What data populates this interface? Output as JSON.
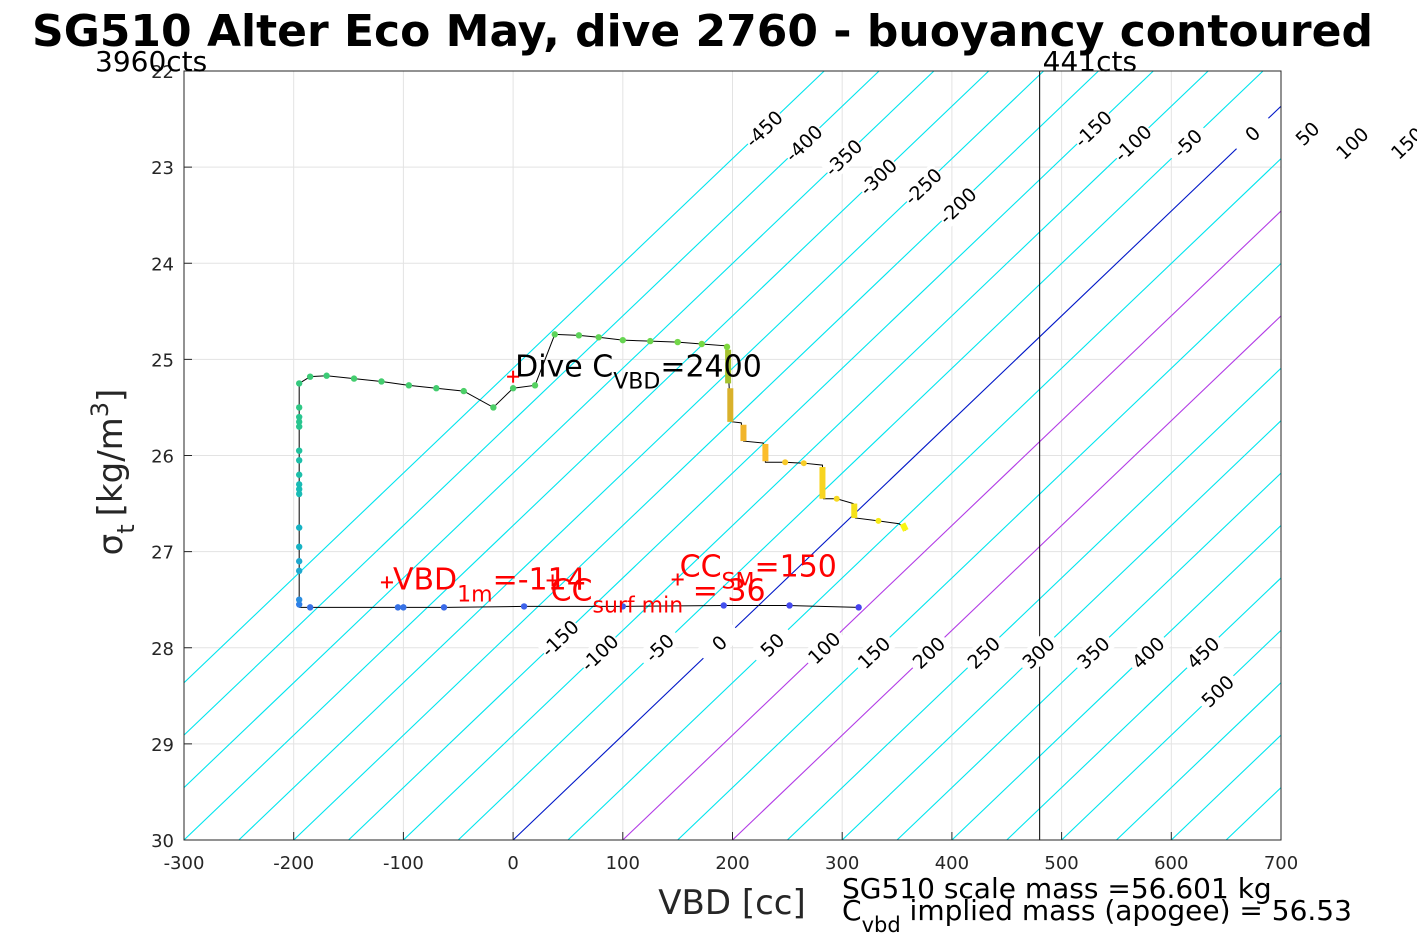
{
  "title": "SG510 Alter Eco May, dive 2760 - buoyancy contoured",
  "chart_data": {
    "type": "scatter",
    "xlabel": "VBD [cc]",
    "ylabel": {
      "sigma": "σ",
      "sub": "t",
      "unit_pre": "[kg/m",
      "sup": "3",
      "unit_post": "]"
    },
    "xlim": [
      -300,
      700
    ],
    "ylim": [
      22,
      30
    ],
    "y_reversed": true,
    "grid": true,
    "x_ticks": [
      "-300",
      "-200",
      "-100",
      "0",
      "100",
      "200",
      "300",
      "400",
      "500",
      "600",
      "700"
    ],
    "y_ticks": [
      "22",
      "23",
      "24",
      "25",
      "26",
      "27",
      "28",
      "29",
      "30"
    ],
    "contour_slope_cc_per_sigma": -91.7,
    "contours": [
      {
        "b": -450,
        "label": "-450",
        "ref_y": 22.6
      },
      {
        "b": -400,
        "label": "-400",
        "ref_y": 22.75
      },
      {
        "b": -350,
        "label": "-350",
        "ref_y": 22.9
      },
      {
        "b": -300,
        "label": "-300",
        "ref_y": 23.1
      },
      {
        "b": -250,
        "label": "-250",
        "ref_y": 23.2
      },
      {
        "b": -200,
        "label": "-200",
        "ref_y": 23.4
      },
      {
        "b": -150,
        "label": "-150",
        "ref_y": 22.6
      },
      {
        "b": -100,
        "label": "-100",
        "ref_y": 22.75
      },
      {
        "b": -50,
        "label": "-50",
        "ref_y": 22.75
      },
      {
        "b": 0,
        "label": "0",
        "ref_y": 22.65
      },
      {
        "b": 50,
        "label": "50",
        "ref_y": 22.65
      },
      {
        "b": 100,
        "label": "100",
        "ref_y": 22.75
      },
      {
        "b": 150,
        "label": "150",
        "ref_y": 22.75
      },
      {
        "b": 200,
        "label": "200",
        "ref_y": 22.75
      },
      {
        "b": 250,
        "label": "250",
        "ref_y": 22.75
      },
      {
        "b": 300,
        "label": "300",
        "ref_y": 22.75
      },
      {
        "b": 350,
        "label": "350",
        "ref_y": 22.75
      },
      {
        "b": 400,
        "label": "400",
        "ref_y": 22.75
      },
      {
        "b": 450,
        "label": "450",
        "ref_y": 22.75
      },
      {
        "b": 500,
        "label": "500",
        "ref_y": 23.15
      },
      {
        "b": -150,
        "label": "-150",
        "ref_y": 27.9
      },
      {
        "b": -100,
        "label": "-100",
        "ref_y": 28.05
      },
      {
        "b": -50,
        "label": "-50",
        "ref_y": 28.0
      },
      {
        "b": 0,
        "label": "0",
        "ref_y": 27.95
      },
      {
        "b": 50,
        "label": "50",
        "ref_y": 27.97
      },
      {
        "b": 100,
        "label": "100",
        "ref_y": 28.0
      },
      {
        "b": 150,
        "label": "150",
        "ref_y": 28.05
      },
      {
        "b": 200,
        "label": "200",
        "ref_y": 28.05
      },
      {
        "b": 250,
        "label": "250",
        "ref_y": 28.05
      },
      {
        "b": 300,
        "label": "300",
        "ref_y": 28.05
      },
      {
        "b": 350,
        "label": "350",
        "ref_y": 28.05
      },
      {
        "b": 400,
        "label": "400",
        "ref_y": 28.05
      },
      {
        "b": 450,
        "label": "450",
        "ref_y": 28.05
      },
      {
        "b": 500,
        "label": "500",
        "ref_y": 28.45
      }
    ],
    "contour_levels": [
      -450,
      -400,
      -350,
      -300,
      -250,
      -200,
      -150,
      -100,
      -50,
      0,
      50,
      100,
      150,
      200,
      250,
      300,
      350,
      400,
      450,
      500,
      550,
      600,
      650,
      700,
      750,
      800
    ],
    "contour_colors": {
      "default": "#00e5ee",
      "zero": "#0018c8",
      "highlight": "#b23ce6"
    },
    "highlight_levels": [
      100,
      200
    ],
    "vertical_lines": [
      {
        "x": 480,
        "label": "441cts"
      }
    ],
    "left_count_label": "3960cts",
    "profile_line": [
      [
        -195,
        27.58
      ],
      [
        -195,
        27.56
      ],
      [
        -195,
        27.4
      ],
      [
        -195,
        27.0
      ],
      [
        -195,
        26.5
      ],
      [
        -195,
        26.0
      ],
      [
        -195,
        25.5
      ],
      [
        -195,
        25.25
      ],
      [
        -185,
        25.18
      ],
      [
        -170,
        25.17
      ],
      [
        -145,
        25.2
      ],
      [
        -120,
        25.23
      ],
      [
        -95,
        25.27
      ],
      [
        -70,
        25.3
      ],
      [
        -45,
        25.33
      ],
      [
        -18,
        25.5
      ],
      [
        0,
        25.3
      ],
      [
        20,
        25.27
      ],
      [
        38,
        24.74
      ],
      [
        60,
        24.75
      ],
      [
        78,
        24.77
      ],
      [
        100,
        24.8
      ],
      [
        125,
        24.81
      ],
      [
        150,
        24.82
      ],
      [
        172,
        24.84
      ],
      [
        195,
        24.86
      ],
      [
        197,
        25.3
      ],
      [
        200,
        25.65
      ],
      [
        208,
        25.66
      ],
      [
        210,
        25.85
      ],
      [
        228,
        25.87
      ],
      [
        230,
        26.07
      ],
      [
        248,
        26.07
      ],
      [
        265,
        26.08
      ],
      [
        282,
        26.1
      ],
      [
        283,
        26.45
      ],
      [
        295,
        26.45
      ],
      [
        310,
        26.5
      ],
      [
        312,
        26.65
      ],
      [
        333,
        26.68
      ],
      [
        352,
        26.71
      ],
      [
        358,
        26.78
      ]
    ],
    "descent_line": [
      [
        -195,
        27.58
      ],
      [
        -180,
        27.58
      ],
      [
        -100,
        27.58
      ],
      [
        -60,
        27.58
      ],
      [
        10,
        27.57
      ],
      [
        100,
        27.57
      ],
      [
        192,
        27.56
      ],
      [
        250,
        27.56
      ],
      [
        315,
        27.58
      ]
    ],
    "points_color_note": "colored from blue (deep) through green to yellow (shallow)",
    "points": [
      [
        -195,
        27.55,
        "#2f7fe8"
      ],
      [
        -195,
        27.5,
        "#2a8de0"
      ],
      [
        -195,
        27.2,
        "#1ea8cf"
      ],
      [
        -195,
        27.1,
        "#1ea8cf"
      ],
      [
        -195,
        26.95,
        "#17b3c4"
      ],
      [
        -195,
        26.75,
        "#17b3c4"
      ],
      [
        -195,
        26.4,
        "#18bbb5"
      ],
      [
        -195,
        26.35,
        "#18bbb5"
      ],
      [
        -195,
        26.3,
        "#18bbb5"
      ],
      [
        -195,
        26.2,
        "#1cbfa9"
      ],
      [
        -195,
        26.05,
        "#1cbfa9"
      ],
      [
        -195,
        25.95,
        "#20c29e"
      ],
      [
        -195,
        25.7,
        "#29c58f"
      ],
      [
        -195,
        25.65,
        "#29c58f"
      ],
      [
        -195,
        25.6,
        "#29c58f"
      ],
      [
        -195,
        25.5,
        "#30c885"
      ],
      [
        -195,
        25.25,
        "#35c97e"
      ],
      [
        -185,
        25.18,
        "#3ccb76"
      ],
      [
        -170,
        25.17,
        "#3ccb76"
      ],
      [
        -145,
        25.2,
        "#44cd6f"
      ],
      [
        -120,
        25.23,
        "#44cd6f"
      ],
      [
        -95,
        25.27,
        "#44cd6f"
      ],
      [
        -70,
        25.3,
        "#44cd6f"
      ],
      [
        -45,
        25.33,
        "#4ccf68"
      ],
      [
        -18,
        25.5,
        "#4ccf68"
      ],
      [
        0,
        25.3,
        "#4ccf68"
      ],
      [
        20,
        25.27,
        "#56d160"
      ],
      [
        38,
        24.74,
        "#5dd35a"
      ],
      [
        60,
        24.75,
        "#5dd35a"
      ],
      [
        78,
        24.77,
        "#62d456"
      ],
      [
        100,
        24.8,
        "#66d552"
      ],
      [
        125,
        24.81,
        "#6cd64d"
      ],
      [
        150,
        24.82,
        "#72d748"
      ],
      [
        172,
        24.84,
        "#76d845"
      ],
      [
        195,
        24.87,
        "#80d83e"
      ],
      [
        -185,
        27.58,
        "#3772e6"
      ],
      [
        -105,
        27.58,
        "#3772e6"
      ],
      [
        -100,
        27.58,
        "#3772e6"
      ],
      [
        -63,
        27.58,
        "#3a6ae8"
      ],
      [
        10,
        27.57,
        "#3d62ea"
      ],
      [
        100,
        27.57,
        "#4058ec"
      ],
      [
        192,
        27.56,
        "#4350ee"
      ],
      [
        252,
        27.56,
        "#4549ef"
      ],
      [
        315,
        27.58,
        "#4842f0"
      ]
    ],
    "thick_segments": [
      [
        [
          196,
          24.9
        ],
        [
          196,
          25.25
        ],
        "#a5c22e"
      ],
      [
        [
          198,
          25.3
        ],
        [
          198,
          25.65
        ],
        "#d9b12b"
      ],
      [
        [
          210,
          25.68
        ],
        [
          210,
          25.85
        ],
        "#f1b52b"
      ],
      [
        [
          230,
          25.88
        ],
        [
          230,
          26.06
        ],
        "#fbbd2c"
      ],
      [
        [
          282,
          26.12
        ],
        [
          282,
          26.45
        ],
        "#f7d421"
      ],
      [
        [
          311,
          26.5
        ],
        [
          311,
          26.65
        ],
        "#f5e11b"
      ],
      [
        [
          355,
          26.71
        ],
        [
          358,
          26.78
        ],
        "#f9f613"
      ]
    ],
    "small_marks": [
      [
        248,
        26.07,
        "#f8c92b"
      ],
      [
        265,
        26.08,
        "#f8cd28"
      ],
      [
        295,
        26.45,
        "#f7d921"
      ],
      [
        333,
        26.68,
        "#f6ea17"
      ]
    ],
    "markers": [
      {
        "x": 0,
        "y": 25.18,
        "label_parts": [
          "Dive C",
          "VBD",
          "=2400"
        ],
        "color": "#000000",
        "marker_color": "#ff0000"
      },
      {
        "x": -115,
        "y": 27.32,
        "label_parts": [
          "VBD",
          "1m",
          "=-114"
        ],
        "color": "#ff0000",
        "marker_color": "#ff0000"
      },
      {
        "x": 150,
        "y": 27.29,
        "label_parts": [
          "CC",
          "SM",
          "=150"
        ],
        "color": "#ff0000",
        "marker_color": "#ff0000"
      },
      {
        "x": 36,
        "y": 27.3,
        "label_parts": [
          "CC",
          "surf min",
          " = 36"
        ],
        "color": "#ff0000",
        "marker_color": "#ff0000"
      }
    ],
    "footnotes": {
      "line1": "SG510 scale mass =56.601 kg",
      "line2_pre": "C",
      "line2_sub": "vbd",
      "line2_post": " implied mass (apogee) = 56.53"
    }
  }
}
